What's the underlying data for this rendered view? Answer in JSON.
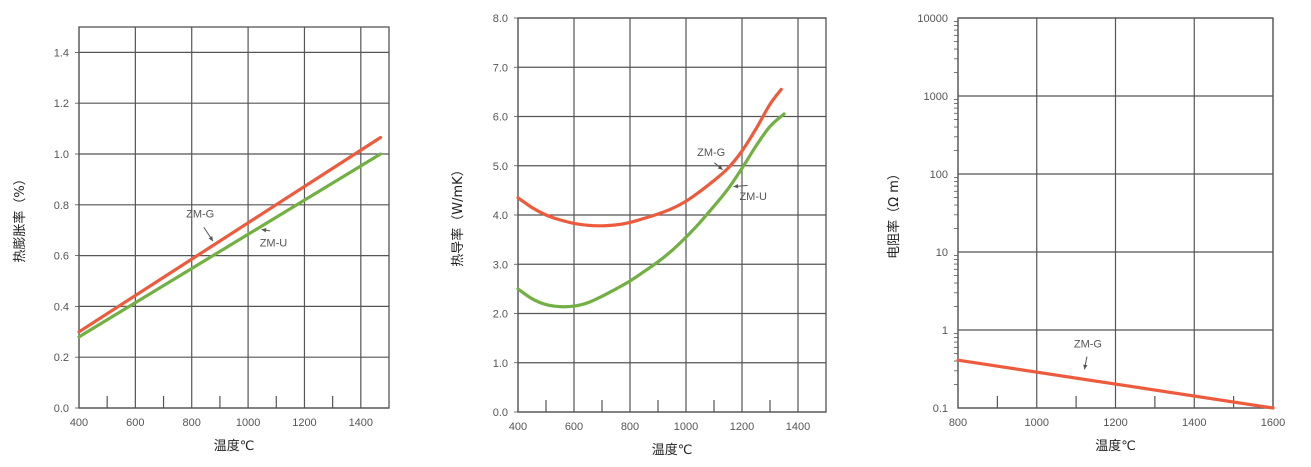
{
  "colors": {
    "grid": "#555555",
    "zmg": "#ee5a3c",
    "zmu": "#72b043",
    "text": "#555555"
  },
  "chart_data": [
    {
      "type": "line",
      "xlabel": "温度℃",
      "ylabel": "热膨胀率（%）",
      "xlim": [
        400,
        1500
      ],
      "ylim": [
        0,
        1.5
      ],
      "xticks": [
        "400",
        "600",
        "800",
        "1000",
        "1200",
        "1400"
      ],
      "yticks": [
        "0.0",
        "0.2",
        "0.4",
        "0.6",
        "0.8",
        "1.0",
        "1.2",
        "1.4"
      ],
      "grid": true,
      "series": [
        {
          "name": "ZM-G",
          "x": [
            400,
            1470
          ],
          "y": [
            0.3,
            1.065
          ]
        },
        {
          "name": "ZM-U",
          "x": [
            400,
            1470
          ],
          "y": [
            0.28,
            1.0
          ]
        }
      ],
      "annotations": [
        {
          "text": "ZM-G",
          "x": 830,
          "y": 0.75
        },
        {
          "text": "ZM-U",
          "x": 1090,
          "y": 0.635
        }
      ]
    },
    {
      "type": "line",
      "xlabel": "温度℃",
      "ylabel": "热导率（W/mK）",
      "xlim": [
        400,
        1500
      ],
      "ylim": [
        0,
        8
      ],
      "xticks": [
        "400",
        "600",
        "800",
        "1000",
        "1200",
        "1400"
      ],
      "yticks": [
        "0.0",
        "1.0",
        "2.0",
        "3.0",
        "4.0",
        "5.0",
        "6.0",
        "7.0",
        "8.0"
      ],
      "grid": true,
      "series": [
        {
          "name": "ZM-G",
          "x": [
            400,
            450,
            500,
            550,
            600,
            650,
            700,
            750,
            800,
            850,
            900,
            950,
            1000,
            1050,
            1100,
            1150,
            1200,
            1250,
            1300,
            1340
          ],
          "y": [
            4.35,
            4.15,
            4.0,
            3.9,
            3.83,
            3.79,
            3.78,
            3.8,
            3.85,
            3.93,
            4.02,
            4.13,
            4.28,
            4.48,
            4.7,
            4.95,
            5.3,
            5.75,
            6.25,
            6.55
          ]
        },
        {
          "name": "ZM-U",
          "x": [
            400,
            450,
            500,
            550,
            600,
            650,
            700,
            750,
            800,
            850,
            900,
            950,
            1000,
            1050,
            1100,
            1150,
            1200,
            1250,
            1300,
            1350
          ],
          "y": [
            2.5,
            2.3,
            2.18,
            2.14,
            2.15,
            2.22,
            2.35,
            2.5,
            2.66,
            2.85,
            3.05,
            3.28,
            3.55,
            3.85,
            4.18,
            4.53,
            4.95,
            5.4,
            5.8,
            6.05
          ]
        }
      ],
      "annotations": [
        {
          "text": "ZM-G",
          "x": 1090,
          "y": 5.2
        },
        {
          "text": "ZM-U",
          "x": 1240,
          "y": 4.3
        }
      ]
    },
    {
      "type": "line",
      "xlabel": "温度℃",
      "ylabel": "电阻率（Ω m）",
      "xlim": [
        800,
        1600
      ],
      "ylim": [
        0.1,
        10000
      ],
      "yscale": "log",
      "xticks": [
        "800",
        "1000",
        "1200",
        "1400",
        "1600"
      ],
      "yticks": [
        "0.1",
        "1",
        "10",
        "100",
        "1000",
        "10000"
      ],
      "grid": true,
      "series": [
        {
          "name": "ZM-G",
          "x": [
            800,
            1600
          ],
          "y": [
            0.41,
            0.1
          ]
        }
      ],
      "annotations": [
        {
          "text": "ZM-G",
          "x": 1130,
          "y": 0.6
        }
      ]
    }
  ]
}
